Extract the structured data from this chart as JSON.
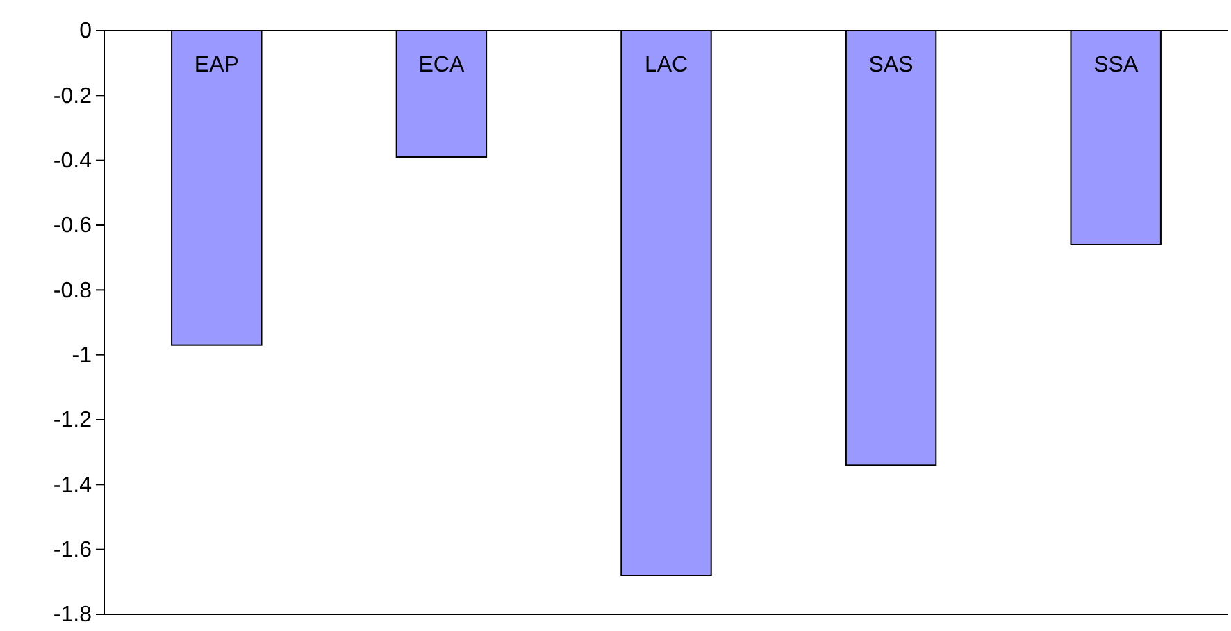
{
  "chart_data": {
    "type": "bar",
    "categories": [
      "EAP",
      "ECA",
      "LAC",
      "SAS",
      "SSA"
    ],
    "values": [
      -0.97,
      -0.39,
      -1.68,
      -1.34,
      -0.66
    ],
    "color": "#9999ff",
    "ylim": [
      -1.8,
      0
    ],
    "yticks": [
      {
        "value": -1.8,
        "label": "-1.8"
      },
      {
        "value": -1.6,
        "label": "-1.6"
      },
      {
        "value": -1.4,
        "label": "-1.4"
      },
      {
        "value": -1.2,
        "label": "-1.2"
      },
      {
        "value": -1,
        "label": "-1"
      },
      {
        "value": -0.8,
        "label": "-0.8"
      },
      {
        "value": -0.6,
        "label": "-0.6"
      },
      {
        "value": -0.4,
        "label": "-0.4"
      },
      {
        "value": -0.2,
        "label": "-0.2"
      },
      {
        "value": 0,
        "label": "0"
      }
    ],
    "grid": false
  }
}
